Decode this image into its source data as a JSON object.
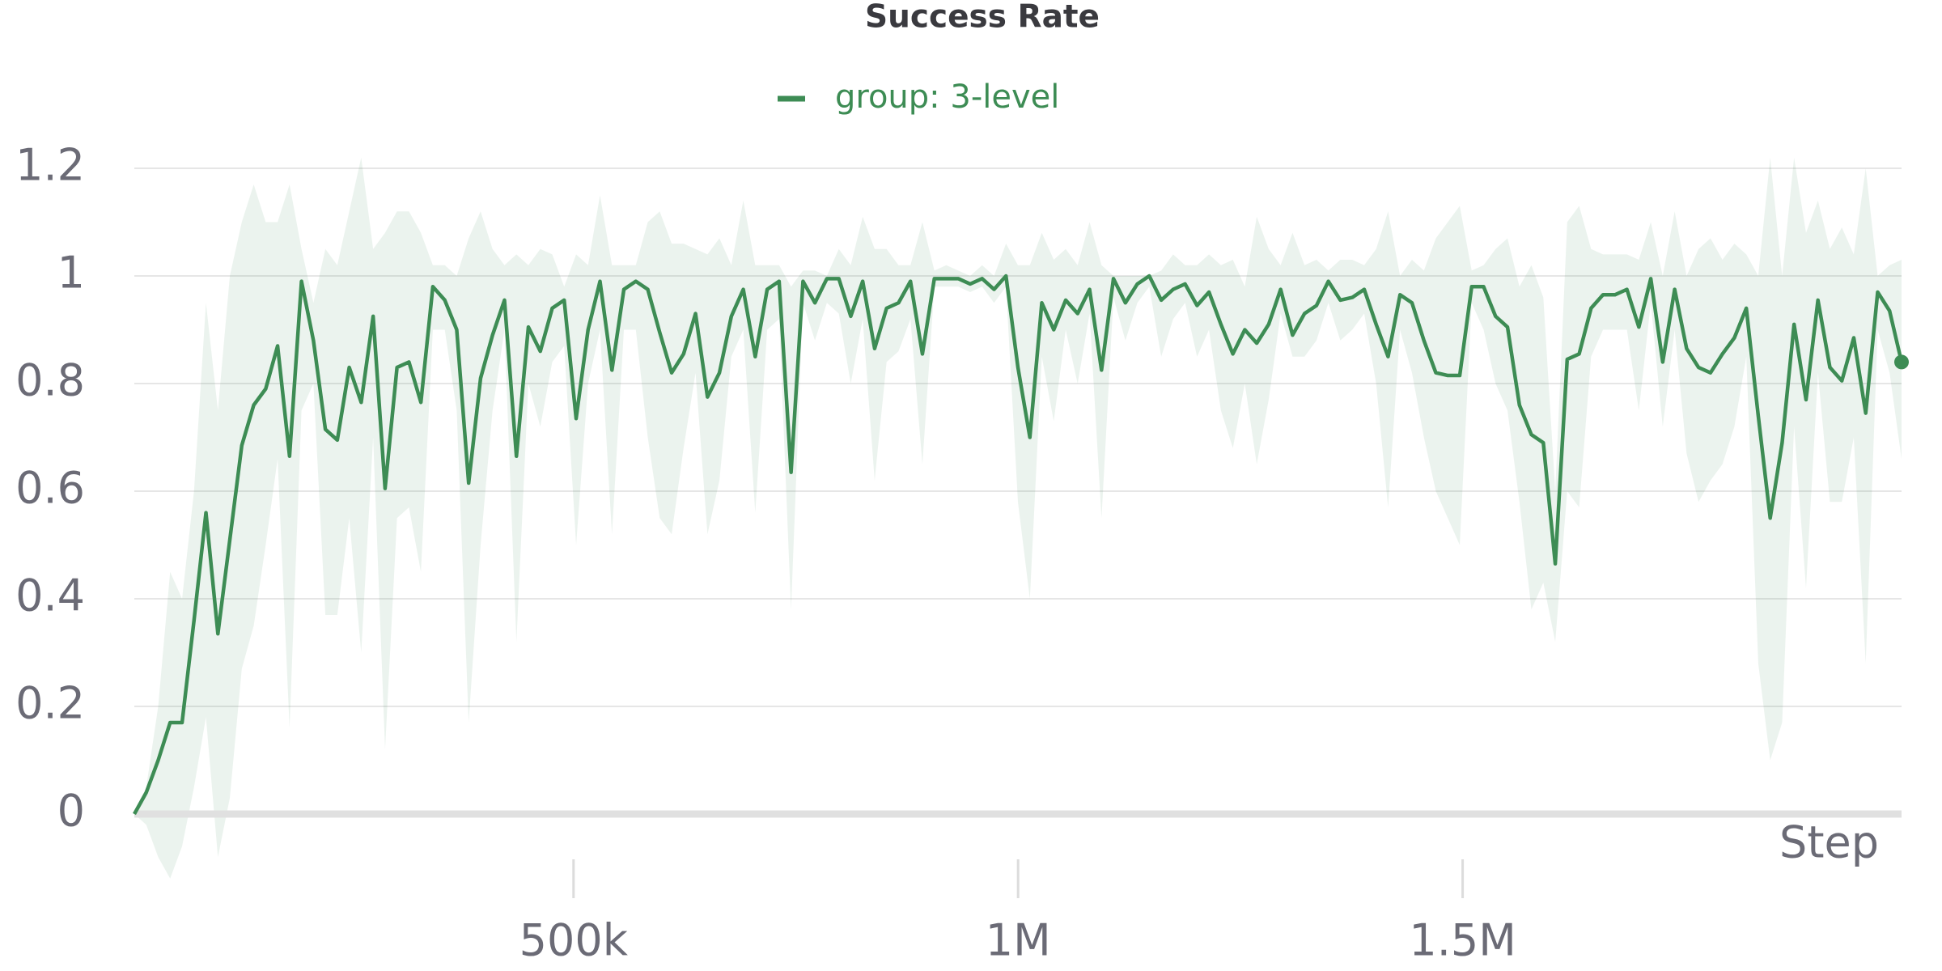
{
  "chart_data": {
    "type": "line",
    "title": "Success Rate",
    "xlabel": "Step",
    "x": [
      6000,
      19430,
      32860,
      46290,
      59720,
      73150,
      86580,
      100010,
      113440,
      126870,
      140300,
      153730,
      167160,
      180590,
      194020,
      207450,
      220880,
      234310,
      247740,
      261170,
      274600,
      288030,
      301460,
      314890,
      328320,
      341750,
      355180,
      368610,
      382040,
      395470,
      408900,
      422330,
      435760,
      449190,
      462620,
      476050,
      489480,
      502910,
      516340,
      529770,
      543200,
      556630,
      570060,
      583490,
      596920,
      610350,
      623780,
      637210,
      650640,
      664070,
      677500,
      690930,
      704360,
      717790,
      731220,
      744650,
      758080,
      771510,
      784940,
      798370,
      811800,
      825230,
      838660,
      852090,
      865520,
      878950,
      892380,
      905810,
      919240,
      932670,
      946100,
      959530,
      972960,
      986390,
      999820,
      1013250,
      1026680,
      1040110,
      1053540,
      1066970,
      1080400,
      1093830,
      1107260,
      1120690,
      1134120,
      1147550,
      1160980,
      1174410,
      1187840,
      1201270,
      1214700,
      1228130,
      1241560,
      1254990,
      1268420,
      1281850,
      1295280,
      1308710,
      1322140,
      1335570,
      1349000,
      1362430,
      1375860,
      1389290,
      1402720,
      1416150,
      1429580,
      1443010,
      1456440,
      1469870,
      1483300,
      1496730,
      1510160,
      1523590,
      1537020,
      1550450,
      1563880,
      1577310,
      1590740,
      1604170,
      1617600,
      1631030,
      1644460,
      1657890,
      1671320,
      1684750,
      1698180,
      1711610,
      1725040,
      1738470,
      1751900,
      1765330,
      1778760,
      1792190,
      1805620,
      1819050,
      1832480,
      1845910,
      1859340,
      1872770,
      1886200,
      1899630,
      1913060,
      1926490,
      1939920,
      1953350,
      1966780,
      1980210,
      1993640
    ],
    "series": [
      {
        "name": "group: 3-level",
        "color": "#3d8c54",
        "values": [
          0,
          0.04,
          0.1,
          0.17,
          0.17,
          0.36,
          0.56,
          0.335,
          0.51,
          0.685,
          0.76,
          0.79,
          0.87,
          0.665,
          0.99,
          0.88,
          0.715,
          0.695,
          0.83,
          0.765,
          0.925,
          0.605,
          0.83,
          0.84,
          0.765,
          0.98,
          0.955,
          0.9,
          0.615,
          0.81,
          0.89,
          0.955,
          0.665,
          0.905,
          0.86,
          0.94,
          0.955,
          0.735,
          0.9,
          0.99,
          0.825,
          0.975,
          0.99,
          0.975,
          0.895,
          0.82,
          0.855,
          0.93,
          0.775,
          0.82,
          0.925,
          0.975,
          0.85,
          0.975,
          0.99,
          0.635,
          0.99,
          0.95,
          0.995,
          0.995,
          0.925,
          0.99,
          0.865,
          0.94,
          0.95,
          0.99,
          0.855,
          0.995,
          0.995,
          0.995,
          0.985,
          0.995,
          0.975,
          1.0,
          0.83,
          0.7,
          0.95,
          0.9,
          0.955,
          0.93,
          0.975,
          0.825,
          0.995,
          0.95,
          0.985,
          1.0,
          0.955,
          0.975,
          0.985,
          0.945,
          0.97,
          0.91,
          0.855,
          0.9,
          0.875,
          0.91,
          0.975,
          0.89,
          0.93,
          0.945,
          0.99,
          0.955,
          0.96,
          0.975,
          0.91,
          0.85,
          0.965,
          0.95,
          0.88,
          0.82,
          0.815,
          0.815,
          0.98,
          0.98,
          0.925,
          0.905,
          0.76,
          0.705,
          0.69,
          0.465,
          0.845,
          0.855,
          0.94,
          0.965,
          0.965,
          0.975,
          0.905,
          0.995,
          0.84,
          0.975,
          0.865,
          0.83,
          0.82,
          0.855,
          0.885,
          0.94,
          0.74,
          0.55,
          0.69,
          0.91,
          0.77,
          0.955,
          0.83,
          0.805,
          0.885,
          0.745,
          0.97,
          0.935,
          0.84
        ],
        "upper": [
          0,
          0.05,
          0.2,
          0.45,
          0.4,
          0.6,
          0.95,
          0.75,
          1.0,
          1.1,
          1.17,
          1.1,
          1.1,
          1.17,
          1.05,
          0.95,
          1.05,
          1.02,
          1.12,
          1.22,
          1.05,
          1.08,
          1.12,
          1.12,
          1.08,
          1.02,
          1.02,
          1.0,
          1.07,
          1.12,
          1.05,
          1.02,
          1.04,
          1.02,
          1.05,
          1.04,
          0.98,
          1.04,
          1.02,
          1.15,
          1.02,
          1.02,
          1.02,
          1.1,
          1.12,
          1.06,
          1.06,
          1.05,
          1.04,
          1.07,
          1.02,
          1.14,
          1.02,
          1.02,
          1.02,
          0.98,
          1.01,
          1.01,
          1.0,
          1.05,
          1.02,
          1.11,
          1.05,
          1.05,
          1.02,
          1.02,
          1.1,
          1.01,
          1.02,
          1.01,
          1.0,
          1.02,
          1.0,
          1.06,
          1.02,
          1.02,
          1.08,
          1.03,
          1.05,
          1.02,
          1.1,
          1.02,
          1.0,
          1.0,
          1.0,
          1.0,
          1.01,
          1.04,
          1.02,
          1.02,
          1.04,
          1.02,
          1.03,
          0.98,
          1.11,
          1.05,
          1.02,
          1.08,
          1.02,
          1.03,
          1.01,
          1.03,
          1.03,
          1.02,
          1.05,
          1.12,
          1.0,
          1.03,
          1.01,
          1.07,
          1.1,
          1.13,
          1.01,
          1.02,
          1.05,
          1.07,
          0.98,
          1.02,
          0.96,
          0.6,
          1.1,
          1.13,
          1.05,
          1.04,
          1.04,
          1.04,
          1.03,
          1.1,
          1.0,
          1.12,
          1.0,
          1.05,
          1.07,
          1.03,
          1.06,
          1.04,
          1.0,
          1.22,
          1.0,
          1.22,
          1.08,
          1.14,
          1.05,
          1.09,
          1.04,
          1.2,
          1.0,
          1.02,
          1.03
        ],
        "lower": [
          0,
          -0.02,
          -0.08,
          -0.12,
          -0.06,
          0.05,
          0.18,
          -0.08,
          0.03,
          0.27,
          0.35,
          0.5,
          0.66,
          0.16,
          0.75,
          0.8,
          0.37,
          0.37,
          0.55,
          0.3,
          0.7,
          0.12,
          0.55,
          0.57,
          0.45,
          0.9,
          0.9,
          0.75,
          0.17,
          0.5,
          0.75,
          0.9,
          0.32,
          0.8,
          0.72,
          0.84,
          0.87,
          0.5,
          0.8,
          0.9,
          0.52,
          0.9,
          0.9,
          0.7,
          0.55,
          0.52,
          0.68,
          0.82,
          0.52,
          0.62,
          0.85,
          0.9,
          0.56,
          0.9,
          0.92,
          0.38,
          0.95,
          0.88,
          0.95,
          0.93,
          0.8,
          0.92,
          0.62,
          0.84,
          0.86,
          0.92,
          0.65,
          0.98,
          0.98,
          0.98,
          0.97,
          0.98,
          0.95,
          0.98,
          0.58,
          0.4,
          0.85,
          0.73,
          0.9,
          0.8,
          0.93,
          0.55,
          0.96,
          0.88,
          0.95,
          0.98,
          0.85,
          0.92,
          0.95,
          0.85,
          0.9,
          0.75,
          0.68,
          0.8,
          0.65,
          0.77,
          0.93,
          0.85,
          0.85,
          0.88,
          0.95,
          0.88,
          0.9,
          0.93,
          0.8,
          0.57,
          0.9,
          0.82,
          0.7,
          0.6,
          0.55,
          0.5,
          0.95,
          0.9,
          0.8,
          0.75,
          0.58,
          0.38,
          0.43,
          0.32,
          0.6,
          0.57,
          0.85,
          0.9,
          0.9,
          0.9,
          0.75,
          0.95,
          0.72,
          0.9,
          0.67,
          0.58,
          0.62,
          0.65,
          0.72,
          0.85,
          0.28,
          0.1,
          0.17,
          0.72,
          0.42,
          0.82,
          0.58,
          0.58,
          0.7,
          0.28,
          0.9,
          0.82,
          0.66
        ]
      }
    ],
    "xlim": [
      6000,
      1993640
    ],
    "xticks": [
      {
        "value": 500000,
        "label": "500k"
      },
      {
        "value": 1000000,
        "label": "1M"
      },
      {
        "value": 1500000,
        "label": "1.5M"
      }
    ],
    "ylim": [
      0,
      1.2
    ],
    "yticks": [
      0,
      0.2,
      0.4,
      0.6,
      0.8,
      1,
      1.2
    ],
    "grid": true
  }
}
